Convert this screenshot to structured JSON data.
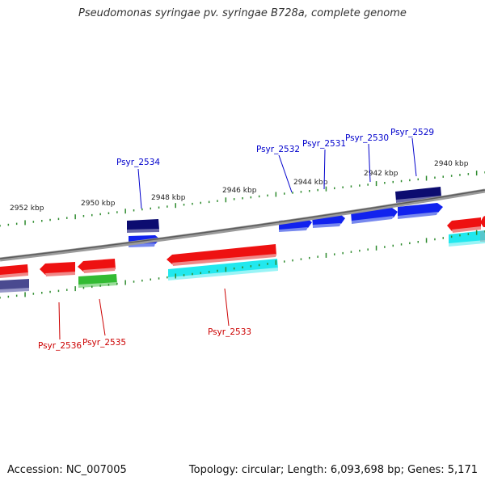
{
  "title": "Pseudomonas syringae pv. syringae B728a, complete genome",
  "footer": {
    "accession_text": "Accession: NC_007005",
    "summary_text": "Topology: circular; Length: 6,093,698 bp; Genes: 5,171"
  },
  "colors": {
    "backbone": "#8a8a8a",
    "tick": "#2e8b2e",
    "forward_label": "#0000cc",
    "reverse_label": "#cc0000",
    "red": "#ee1111",
    "blue": "#1122ee",
    "navy": "#0c0c70",
    "cyan": "#22e8ee",
    "green": "#33bb33",
    "slate": "#4a4a90"
  },
  "ticks": [
    {
      "label": "2952 kbp"
    },
    {
      "label": "2950 kbp"
    },
    {
      "label": "2948 kbp"
    },
    {
      "label": "2946 kbp"
    },
    {
      "label": "2944 kbp"
    },
    {
      "label": "2942 kbp"
    },
    {
      "label": "2940 kbp"
    }
  ],
  "gene_labels": {
    "forward": [
      "Psyr_2534",
      "Psyr_2532",
      "Psyr_2531",
      "Psyr_2530",
      "Psyr_2529"
    ],
    "reverse": [
      "Psyr_2536",
      "Psyr_2535",
      "Psyr_2533"
    ]
  }
}
